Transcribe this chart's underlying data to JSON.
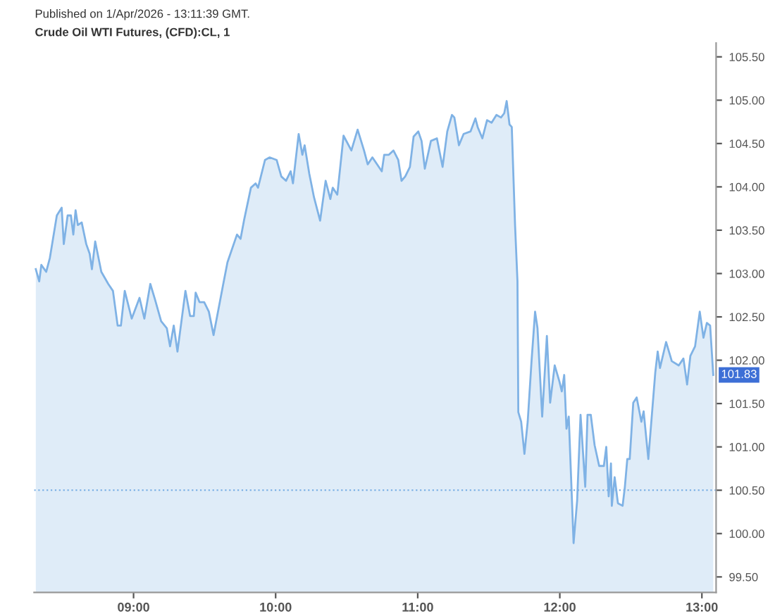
{
  "chart_data": {
    "type": "area",
    "title": "Crude Oil WTI Futures, (CFD):CL, 1",
    "annotations": [
      "Published on 1/Apr/2026 - 13:11:39 GMT.",
      {
        "text": "101.83",
        "x": 13.08,
        "y": 101.83
      }
    ],
    "series": [
      {
        "color": "#7fb2e5",
        "x": [
          8.312,
          8.336,
          8.351,
          8.385,
          8.411,
          8.46,
          8.494,
          8.509,
          8.536,
          8.559,
          8.576,
          8.592,
          8.608,
          8.635,
          8.667,
          8.691,
          8.707,
          8.73,
          8.773,
          8.822,
          8.855,
          8.888,
          8.911,
          8.938,
          8.987,
          9.042,
          9.076,
          9.118,
          9.151,
          9.194,
          9.234,
          9.257,
          9.283,
          9.309,
          9.365,
          9.398,
          9.424,
          9.437,
          9.464,
          9.497,
          9.53,
          9.563,
          9.629,
          9.661,
          9.728,
          9.753,
          9.777,
          9.826,
          9.859,
          9.876,
          9.925,
          9.958,
          10.007,
          10.04,
          10.073,
          10.106,
          10.122,
          10.162,
          10.188,
          10.204,
          10.237,
          10.27,
          10.313,
          10.352,
          10.385,
          10.402,
          10.434,
          10.478,
          10.533,
          10.577,
          10.622,
          10.648,
          10.681,
          10.747,
          10.764,
          10.797,
          10.829,
          10.863,
          10.886,
          10.912,
          10.945,
          10.971,
          11.004,
          11.027,
          11.05,
          11.093,
          11.135,
          11.175,
          11.208,
          11.241,
          11.258,
          11.29,
          11.323,
          11.372,
          11.406,
          11.422,
          11.455,
          11.488,
          11.52,
          11.554,
          11.586,
          11.609,
          11.626,
          11.646,
          11.662,
          11.685,
          11.702,
          11.708,
          11.728,
          11.751,
          11.774,
          11.801,
          11.826,
          11.843,
          11.876,
          11.909,
          11.932,
          11.964,
          11.998,
          12.014,
          12.031,
          12.047,
          12.063,
          12.097,
          12.122,
          12.146,
          12.179,
          12.195,
          12.218,
          12.245,
          12.277,
          12.31,
          12.327,
          12.344,
          12.36,
          12.366,
          12.386,
          12.409,
          12.442,
          12.458,
          12.475,
          12.492,
          12.517,
          12.541,
          12.574,
          12.59,
          12.623,
          12.672,
          12.689,
          12.705,
          12.748,
          12.788,
          12.837,
          12.87,
          12.896,
          12.919,
          12.952,
          12.985,
          13.011,
          13.035,
          13.058,
          13.08
        ],
        "values": [
          103.05,
          102.91,
          103.1,
          103.02,
          103.18,
          103.67,
          103.76,
          103.34,
          103.67,
          103.67,
          103.45,
          103.73,
          103.56,
          103.59,
          103.34,
          103.23,
          103.05,
          103.37,
          103.02,
          102.88,
          102.8,
          102.4,
          102.4,
          102.8,
          102.48,
          102.72,
          102.48,
          102.88,
          102.7,
          102.45,
          102.37,
          102.16,
          102.4,
          102.1,
          102.8,
          102.51,
          102.51,
          102.78,
          102.67,
          102.67,
          102.56,
          102.29,
          102.86,
          103.13,
          103.45,
          103.4,
          103.61,
          103.99,
          104.04,
          103.99,
          104.31,
          104.34,
          104.31,
          104.12,
          104.07,
          104.18,
          104.04,
          104.61,
          104.37,
          104.48,
          104.15,
          103.88,
          103.61,
          104.07,
          103.86,
          103.99,
          103.91,
          104.59,
          104.42,
          104.66,
          104.42,
          104.26,
          104.34,
          104.18,
          104.37,
          104.37,
          104.42,
          104.31,
          104.07,
          104.12,
          104.23,
          104.58,
          104.64,
          104.53,
          104.21,
          104.53,
          104.56,
          104.23,
          104.64,
          104.83,
          104.8,
          104.48,
          104.61,
          104.64,
          104.79,
          104.69,
          104.56,
          104.77,
          104.74,
          104.83,
          104.8,
          104.85,
          104.99,
          104.72,
          104.69,
          103.56,
          102.91,
          101.4,
          101.29,
          100.92,
          101.29,
          101.99,
          102.56,
          102.37,
          101.35,
          102.28,
          101.51,
          101.94,
          101.75,
          101.64,
          101.83,
          101.21,
          101.35,
          99.89,
          100.38,
          101.37,
          100.54,
          101.37,
          101.37,
          101.02,
          100.78,
          100.78,
          101.0,
          100.43,
          100.81,
          100.32,
          100.65,
          100.35,
          100.32,
          100.54,
          100.86,
          100.86,
          101.51,
          101.57,
          101.29,
          101.41,
          100.86,
          101.86,
          102.1,
          101.91,
          102.21,
          101.99,
          101.94,
          102.02,
          101.72,
          102.05,
          102.16,
          102.56,
          102.26,
          102.43,
          102.4,
          101.83
        ]
      }
    ],
    "xlim": [
      8.3,
      13.1
    ],
    "ylim": [
      99.32,
      105.66
    ],
    "xticks": [
      {
        "value": 9,
        "label": "09:00"
      },
      {
        "value": 10,
        "label": "10:00"
      },
      {
        "value": 11,
        "label": "11:00"
      },
      {
        "value": 12,
        "label": "12:00"
      },
      {
        "value": 13,
        "label": "13:00"
      }
    ],
    "yticks": [
      {
        "value": 99.5,
        "label": "99.50"
      },
      {
        "value": 100,
        "label": "100.00"
      },
      {
        "value": 100.5,
        "label": "100.50"
      },
      {
        "value": 101,
        "label": "101.00"
      },
      {
        "value": 101.5,
        "label": "101.50"
      },
      {
        "value": 102,
        "label": "102.00"
      },
      {
        "value": 102.5,
        "label": "102.50"
      },
      {
        "value": 103,
        "label": "103.00"
      },
      {
        "value": 103.5,
        "label": "103.50"
      },
      {
        "value": 104,
        "label": "104.00"
      },
      {
        "value": 104.5,
        "label": "104.50"
      },
      {
        "value": 105,
        "label": "105.00"
      },
      {
        "value": 105.5,
        "label": "105.50"
      }
    ],
    "ref_lines": [
      {
        "axis": "y",
        "value": 100.5,
        "color": "#7fb2e5",
        "line_style": "dotted"
      }
    ],
    "grid": false,
    "legend": false
  }
}
